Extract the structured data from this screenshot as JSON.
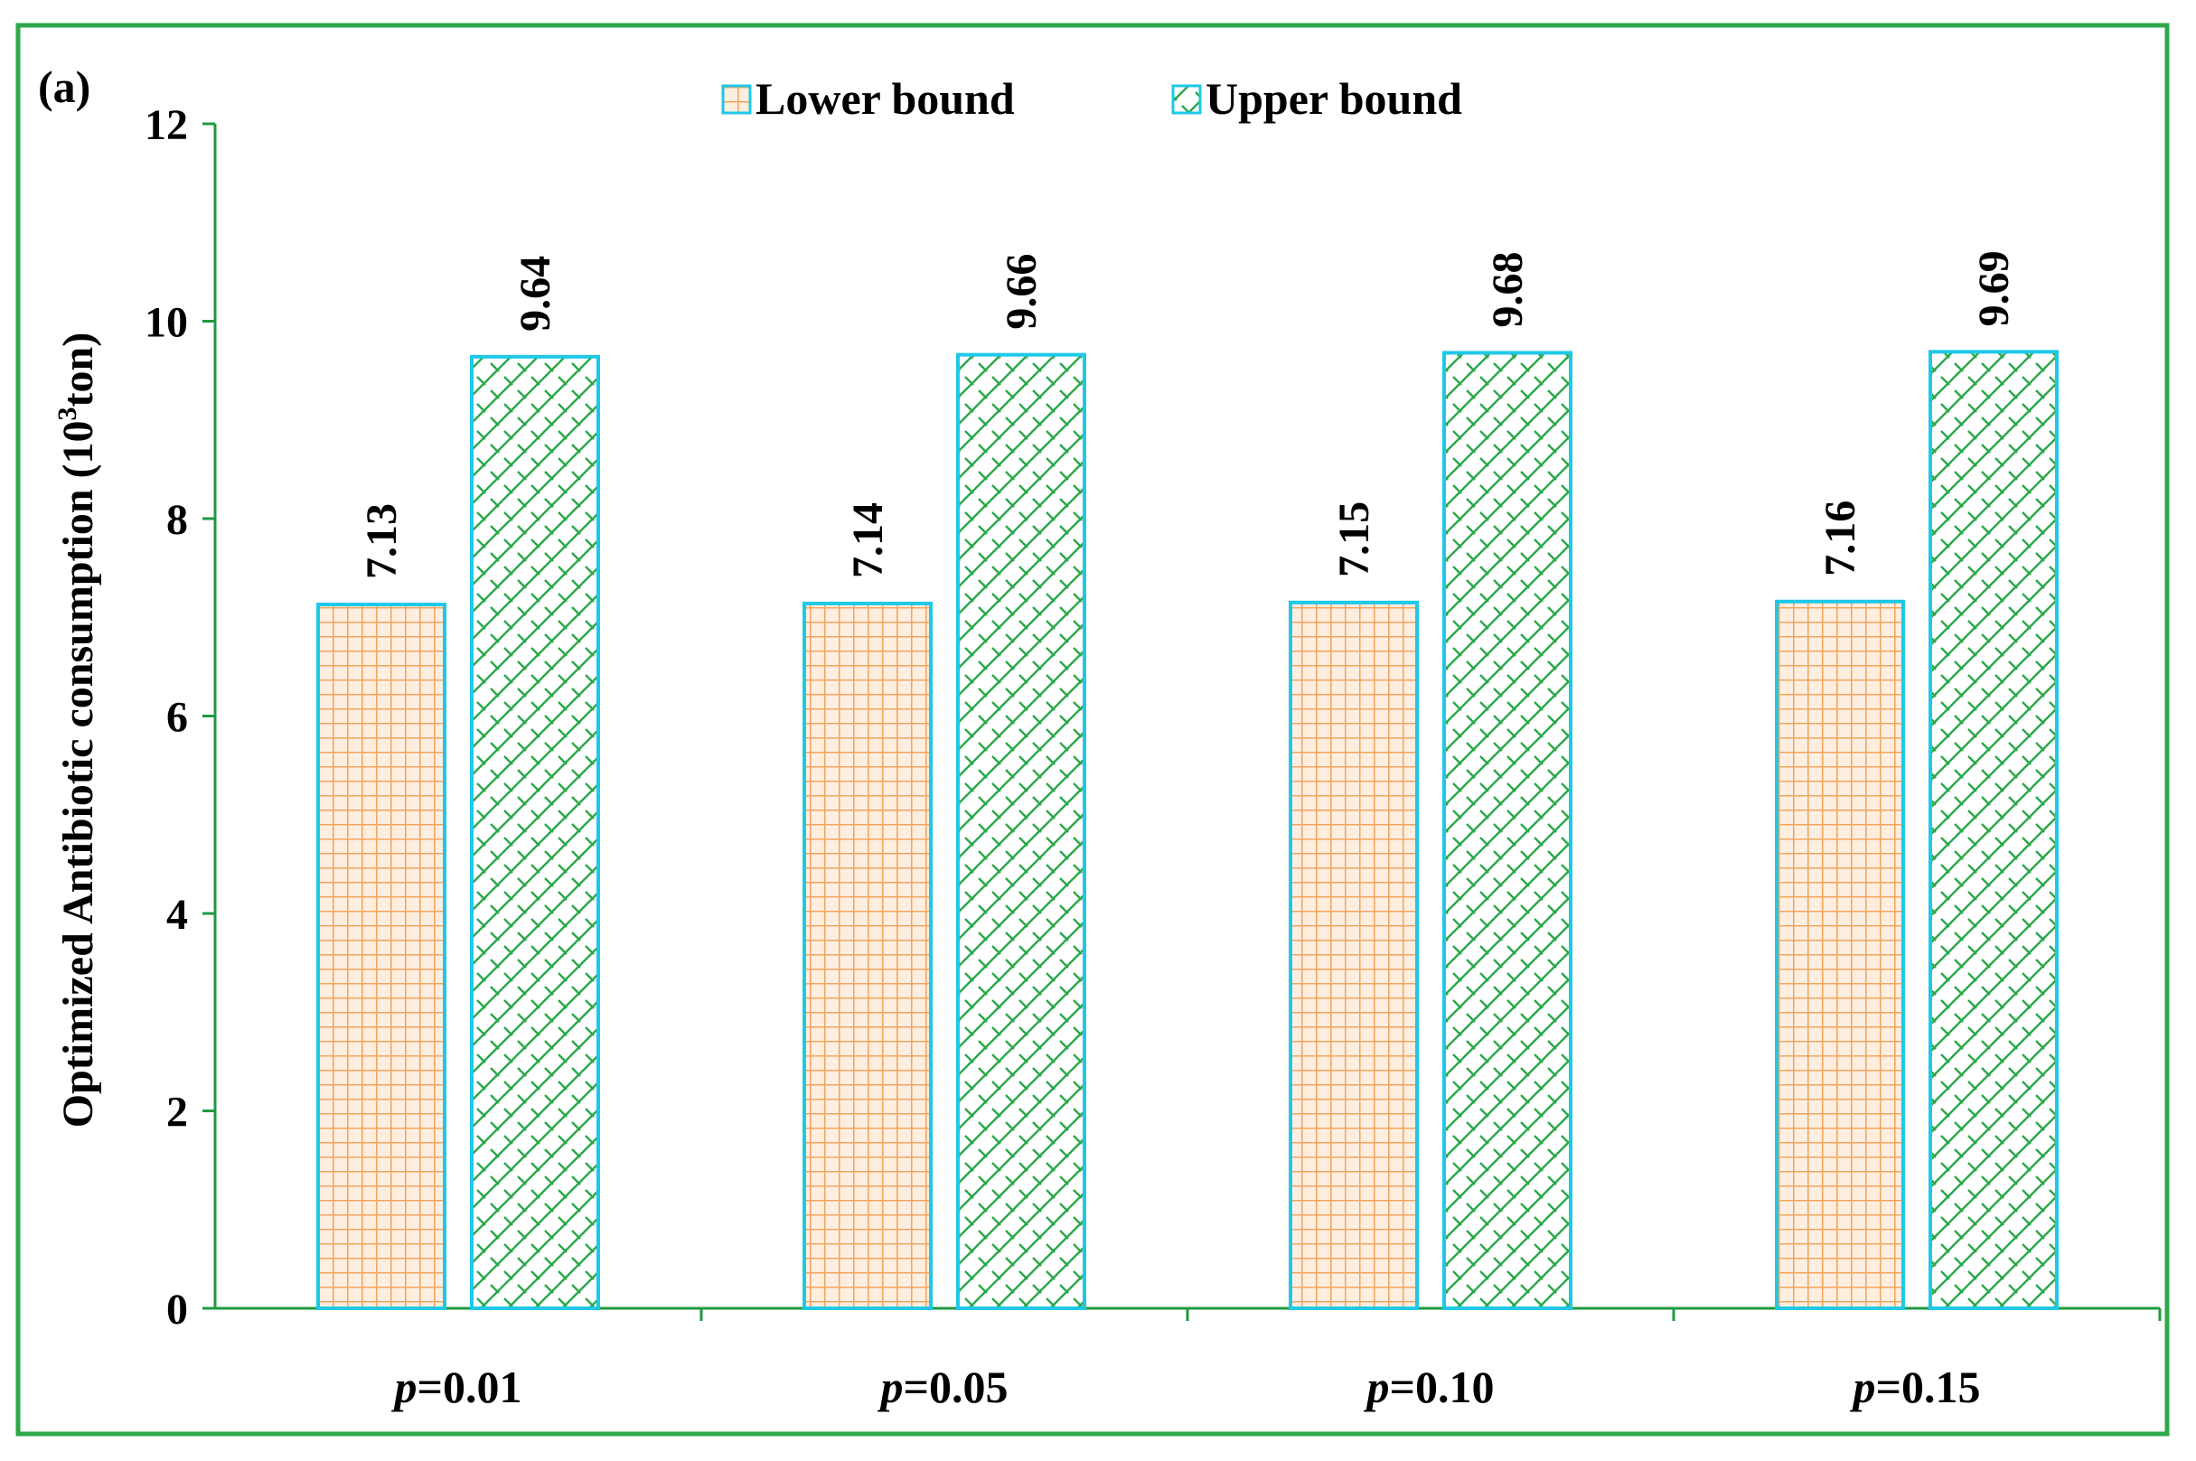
{
  "panel_label": "(a)",
  "chart_data": {
    "type": "bar",
    "categories_italic_prefix": "p",
    "categories": [
      "p=0.01",
      "p=0.05",
      "p=0.10",
      "p=0.15"
    ],
    "category_values": [
      "=0.01",
      "=0.05",
      "=0.10",
      "=0.15"
    ],
    "series": [
      {
        "name": "Lower bound",
        "values": [
          7.13,
          7.14,
          7.15,
          7.16
        ],
        "labels": [
          "7.13",
          "7.14",
          "7.15",
          "7.16"
        ]
      },
      {
        "name": "Upper bound",
        "values": [
          9.64,
          9.66,
          9.68,
          9.69
        ],
        "labels": [
          "9.64",
          "9.66",
          "9.68",
          "9.69"
        ]
      }
    ],
    "ylabel_prefix": "Optimized  Antibiotic consumption (10",
    "ylabel_sup": "3",
    "ylabel_suffix": "ton)",
    "ylim": [
      0,
      12
    ],
    "yticks": [
      "0",
      "2",
      "4",
      "6",
      "8",
      "10",
      "12"
    ],
    "legend_position": "top-center",
    "grid": false
  },
  "colors": {
    "frame": "#2ea84a",
    "axis": "#1f9a3f",
    "bar_border": "#1ec8e8",
    "lower_fill": "#fdeee0",
    "lower_hatch": "#f2a55e",
    "upper_fill": "#ffffff",
    "upper_hatch": "#2aa84a"
  }
}
